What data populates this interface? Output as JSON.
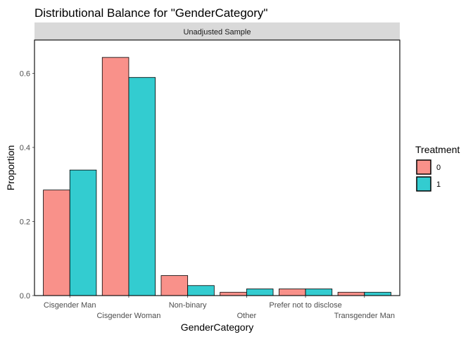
{
  "chart_data": {
    "type": "bar",
    "title": "Distributional Balance for \"GenderCategory\"",
    "facet_label": "Unadjusted Sample",
    "xlabel": "GenderCategory",
    "ylabel": "Proportion",
    "categories": [
      "Cisgender Man",
      "Cisgender Woman",
      "Non-binary",
      "Other",
      "Prefer not to disclose",
      "Transgender Man"
    ],
    "series": [
      {
        "name": "0",
        "values": [
          0.285,
          0.643,
          0.054,
          0.009,
          0.018,
          0.009
        ]
      },
      {
        "name": "1",
        "values": [
          0.339,
          0.589,
          0.027,
          0.018,
          0.018,
          0.009
        ]
      }
    ],
    "ylim": [
      0,
      0.69
    ],
    "yticks": [
      0.0,
      0.2,
      0.4,
      0.6
    ],
    "ytick_labels": [
      "0.0",
      "0.2",
      "0.4",
      "0.6"
    ],
    "grid": false,
    "legend": {
      "title": "Treatment",
      "position": "right"
    },
    "colors": [
      "#F8766D",
      "#00BFC4"
    ],
    "bar_alpha": 0.8
  }
}
